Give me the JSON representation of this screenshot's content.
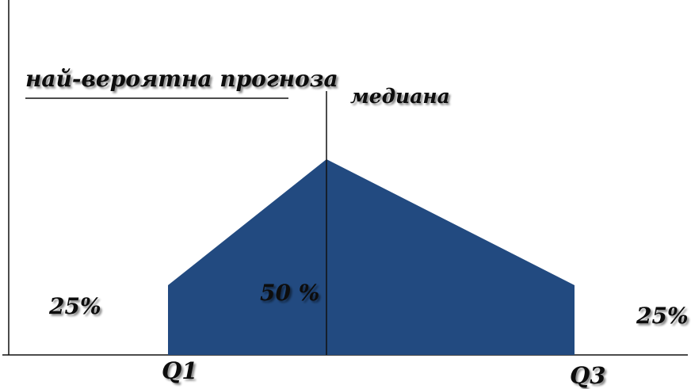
{
  "diagram": {
    "title": "най-вероятна прогноза",
    "median_label": "медиана",
    "left_tail_label": "25%",
    "center_label": "50 %",
    "right_tail_label": "25%",
    "q1_label": "Q1",
    "q3_label": "Q3"
  },
  "colors": {
    "fill": "#224a80",
    "line": "#111111",
    "text": "#111111"
  }
}
